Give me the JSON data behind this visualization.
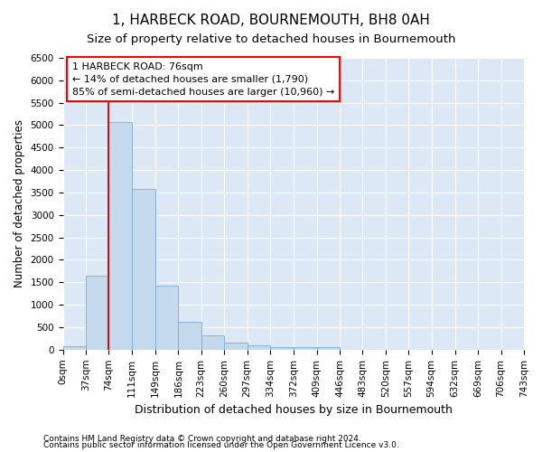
{
  "title": "1, HARBECK ROAD, BOURNEMOUTH, BH8 0AH",
  "subtitle": "Size of property relative to detached houses in Bournemouth",
  "xlabel": "Distribution of detached houses by size in Bournemouth",
  "ylabel": "Number of detached properties",
  "footnote1": "Contains HM Land Registry data © Crown copyright and database right 2024.",
  "footnote2": "Contains public sector information licensed under the Open Government Licence v3.0.",
  "annotation_title": "1 HARBECK ROAD: 76sqm",
  "annotation_line1": "← 14% of detached houses are smaller (1,790)",
  "annotation_line2": "85% of semi-detached houses are larger (10,960) →",
  "bar_color": "#c5d9ed",
  "bar_edge_color": "#7aadd4",
  "background_color": "#dce8f5",
  "grid_color": "#ffffff",
  "red_line_color": "#cc0000",
  "red_line_x": 74,
  "bin_edges": [
    0,
    37,
    74,
    111,
    149,
    186,
    223,
    260,
    297,
    334,
    372,
    409,
    446,
    483,
    520,
    557,
    594,
    632,
    669,
    706,
    743
  ],
  "bar_heights": [
    80,
    1650,
    5080,
    3580,
    1430,
    620,
    310,
    160,
    100,
    50,
    50,
    50,
    0,
    0,
    0,
    0,
    0,
    0,
    0,
    0
  ],
  "ylim": [
    0,
    6500
  ],
  "xlim": [
    0,
    743
  ],
  "yticks": [
    0,
    500,
    1000,
    1500,
    2000,
    2500,
    3000,
    3500,
    4000,
    4500,
    5000,
    5500,
    6000,
    6500
  ],
  "title_fontsize": 11,
  "subtitle_fontsize": 9.5,
  "ylabel_fontsize": 8.5,
  "xlabel_fontsize": 9,
  "tick_fontsize": 7.5,
  "footnote_fontsize": 6.5,
  "annotation_fontsize": 8
}
